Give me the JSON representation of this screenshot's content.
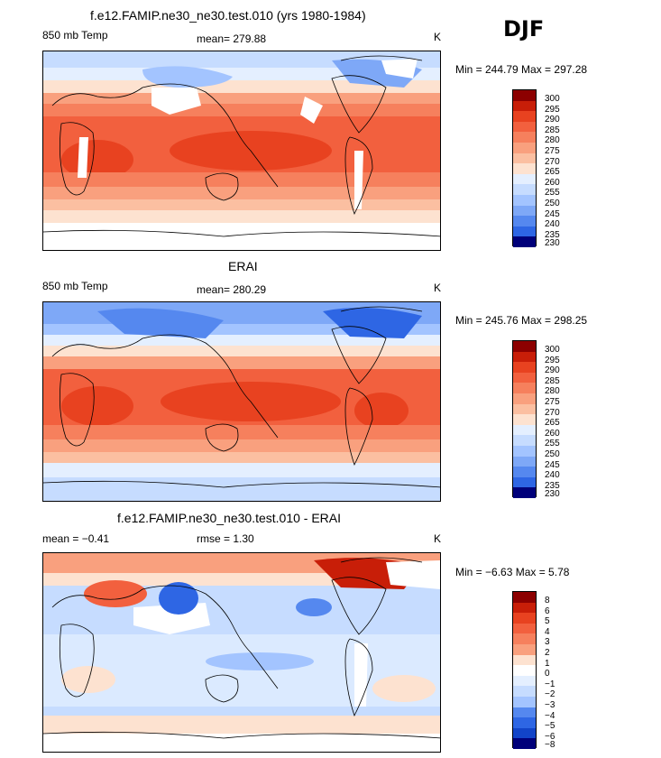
{
  "domain_label": "DJF",
  "colors": {
    "warm": [
      "#fde2d0",
      "#fbbfa1",
      "#f9a07e",
      "#f6805d",
      "#f2603e",
      "#e84220",
      "#c81e08",
      "#8c0000"
    ],
    "cool": [
      "#e4efff",
      "#c6dcff",
      "#a3c4ff",
      "#7ea8f7",
      "#5588ef",
      "#2e66e4",
      "#1244c8",
      "#0016a0",
      "#00007a"
    ],
    "land_outline": "#000000",
    "missing": "#ffffff"
  },
  "panels": [
    {
      "title": "f.e12.FAMIP.ne30_ne30.test.010 (yrs 1980-1984)",
      "left_label": "850 mb Temp",
      "center_label": "mean=  279.88",
      "right_label": "K",
      "minmax": "Min = 244.79 Max = 297.28",
      "colorbar_labels": [
        "300",
        "295",
        "290",
        "285",
        "280",
        "275",
        "270",
        "265",
        "260",
        "255",
        "250",
        "245",
        "240",
        "235",
        "230"
      ]
    },
    {
      "title": "ERAI",
      "left_label": "850 mb Temp",
      "center_label": "mean=  280.29",
      "right_label": "K",
      "minmax": "Min = 245.76 Max = 298.25",
      "colorbar_labels": [
        "300",
        "295",
        "290",
        "285",
        "280",
        "275",
        "270",
        "265",
        "260",
        "255",
        "250",
        "245",
        "240",
        "235",
        "230"
      ]
    },
    {
      "title": "f.e12.FAMIP.ne30_ne30.test.010 - ERAI",
      "left_label": "mean =   −0.41",
      "center_label": "rmse =    1.30",
      "right_label": "K",
      "minmax": "Min =  −6.63 Max =   5.78",
      "colorbar_labels": [
        "8",
        "6",
        "5",
        "4",
        "3",
        "2",
        "1",
        "0",
        "−1",
        "−2",
        "−3",
        "−4",
        "−5",
        "−6",
        "−8"
      ]
    }
  ]
}
